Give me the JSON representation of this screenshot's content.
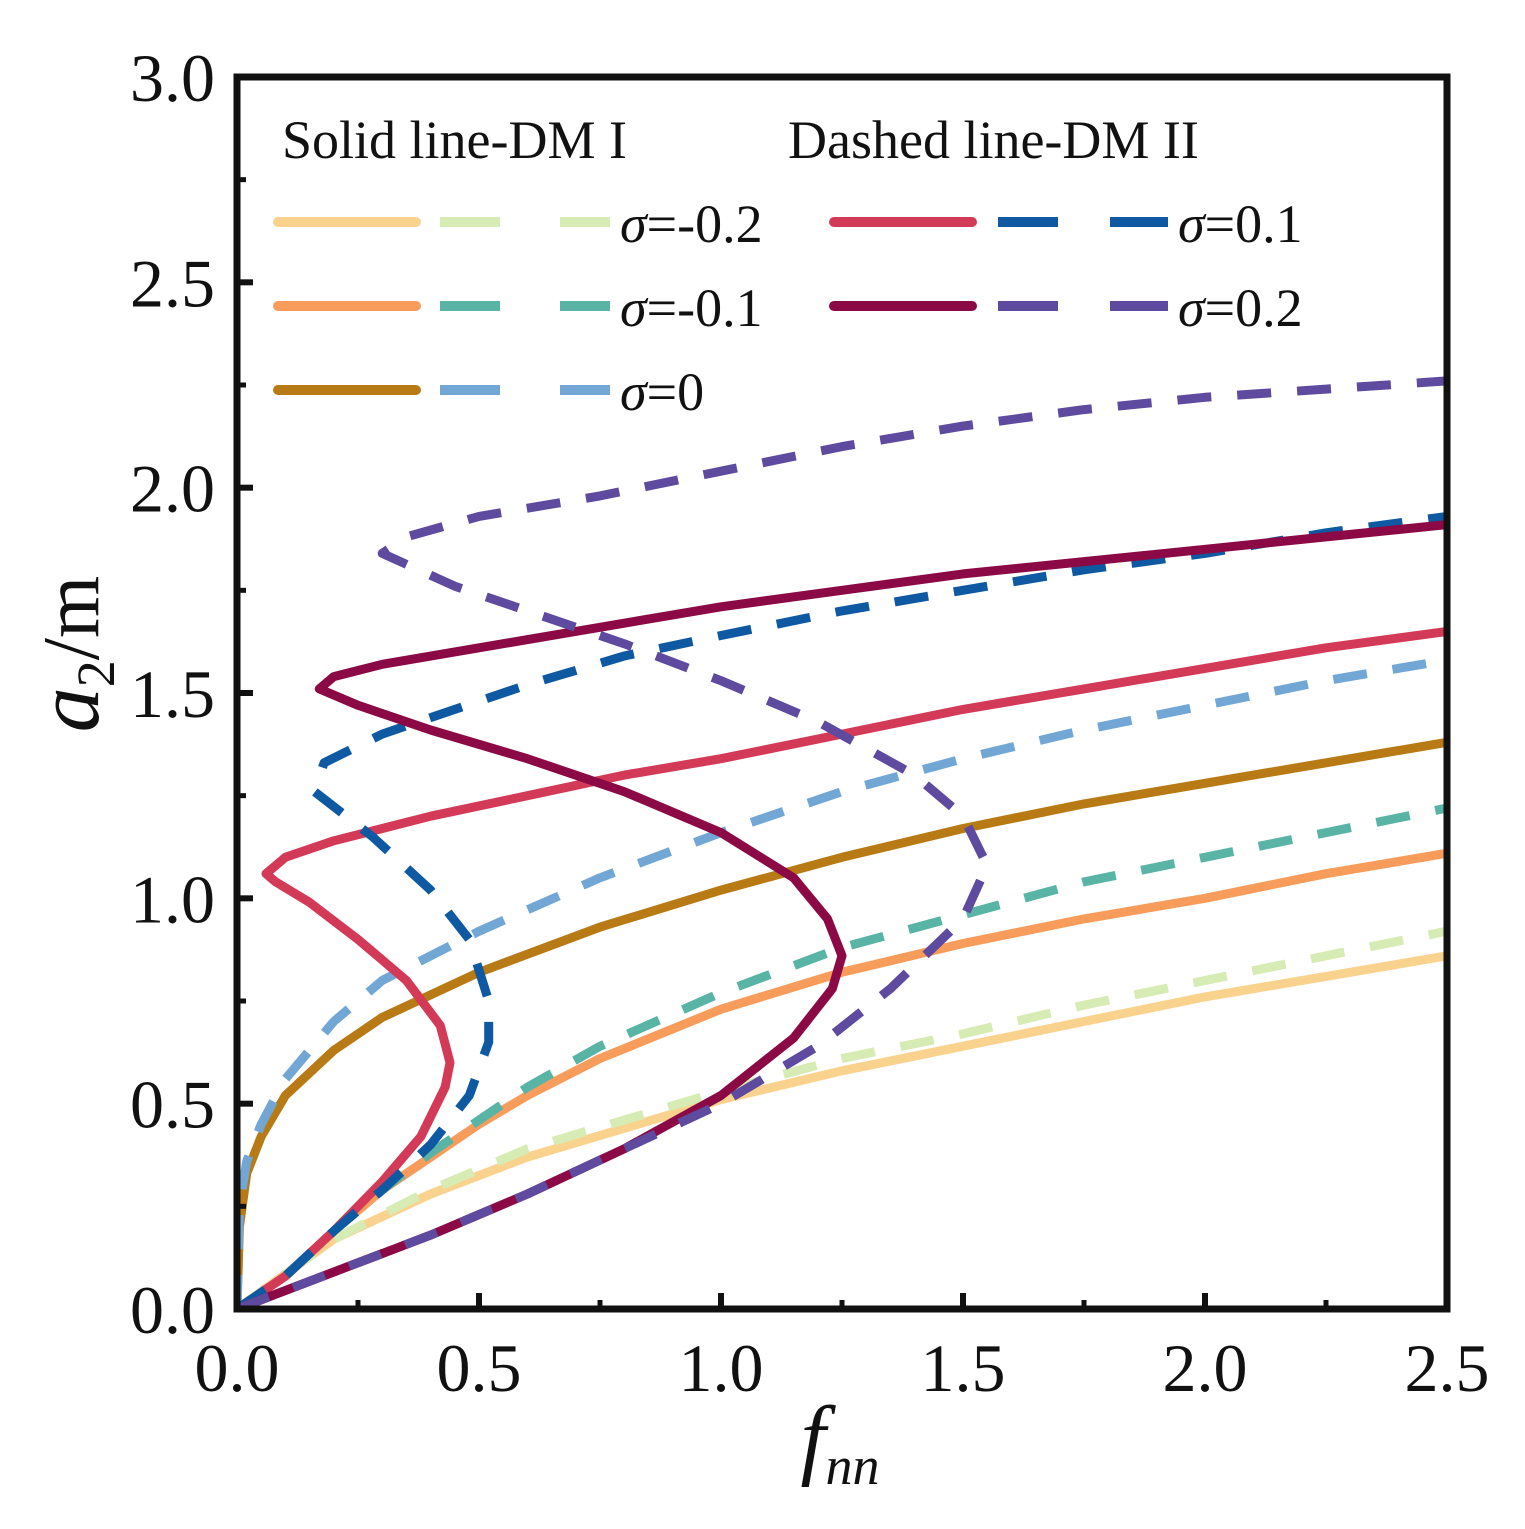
{
  "chart_data": {
    "type": "line",
    "xlabel": {
      "main": "f",
      "sub": "nn"
    },
    "ylabel": {
      "main": "a",
      "sub": "2",
      "unit": "/m"
    },
    "xlim": [
      0,
      2.5
    ],
    "ylim": [
      0,
      3.0
    ],
    "x_ticks": [
      "0.0",
      "0.5",
      "1.0",
      "1.5",
      "2.0",
      "2.5"
    ],
    "y_ticks": [
      "0.0",
      "0.5",
      "1.0",
      "1.5",
      "2.0",
      "2.5",
      "3.0"
    ],
    "grid": false,
    "legend_header": {
      "solid": "Solid line-DM I",
      "dashed": "Dashed line-DM II"
    },
    "legend_placement": "top-left",
    "series": [
      {
        "name": "σ=-0.2",
        "model": "DM I",
        "style": "solid",
        "color": "#F9D38D",
        "points": [
          [
            0,
            0
          ],
          [
            0.2,
            0.17
          ],
          [
            0.4,
            0.28
          ],
          [
            0.6,
            0.37
          ],
          [
            0.8,
            0.44
          ],
          [
            1.0,
            0.51
          ],
          [
            1.25,
            0.58
          ],
          [
            1.5,
            0.64
          ],
          [
            1.75,
            0.7
          ],
          [
            2.0,
            0.76
          ],
          [
            2.25,
            0.81
          ],
          [
            2.5,
            0.86
          ]
        ]
      },
      {
        "name": "σ=-0.2",
        "model": "DM II",
        "style": "dashed",
        "color": "#D7EBB4",
        "points": [
          [
            0,
            0
          ],
          [
            0.2,
            0.17
          ],
          [
            0.4,
            0.29
          ],
          [
            0.6,
            0.39
          ],
          [
            0.8,
            0.46
          ],
          [
            1.0,
            0.53
          ],
          [
            1.25,
            0.61
          ],
          [
            1.5,
            0.67
          ],
          [
            1.75,
            0.74
          ],
          [
            2.0,
            0.8
          ],
          [
            2.25,
            0.86
          ],
          [
            2.5,
            0.92
          ]
        ]
      },
      {
        "name": "σ=-0.1",
        "model": "DM I",
        "style": "solid",
        "color": "#F79C5B",
        "points": [
          [
            0,
            0
          ],
          [
            0.1,
            0.08
          ],
          [
            0.2,
            0.19
          ],
          [
            0.3,
            0.29
          ],
          [
            0.4,
            0.37
          ],
          [
            0.5,
            0.45
          ],
          [
            0.6,
            0.52
          ],
          [
            0.75,
            0.61
          ],
          [
            1.0,
            0.73
          ],
          [
            1.25,
            0.82
          ],
          [
            1.5,
            0.89
          ],
          [
            1.75,
            0.95
          ],
          [
            2.0,
            1.0
          ],
          [
            2.25,
            1.06
          ],
          [
            2.5,
            1.11
          ]
        ]
      },
      {
        "name": "σ=-0.1",
        "model": "DM II",
        "style": "dashed",
        "color": "#59B4A5",
        "points": [
          [
            0,
            0
          ],
          [
            0.1,
            0.08
          ],
          [
            0.2,
            0.19
          ],
          [
            0.3,
            0.29
          ],
          [
            0.4,
            0.38
          ],
          [
            0.5,
            0.46
          ],
          [
            0.6,
            0.54
          ],
          [
            0.75,
            0.64
          ],
          [
            1.0,
            0.77
          ],
          [
            1.25,
            0.88
          ],
          [
            1.5,
            0.96
          ],
          [
            1.75,
            1.04
          ],
          [
            2.0,
            1.1
          ],
          [
            2.25,
            1.16
          ],
          [
            2.5,
            1.22
          ]
        ]
      },
      {
        "name": "σ=0",
        "model": "DM I",
        "style": "solid",
        "color": "#B87A14",
        "points": [
          [
            0,
            0
          ],
          [
            0.005,
            0.2
          ],
          [
            0.02,
            0.33
          ],
          [
            0.05,
            0.42
          ],
          [
            0.1,
            0.52
          ],
          [
            0.2,
            0.63
          ],
          [
            0.3,
            0.71
          ],
          [
            0.5,
            0.82
          ],
          [
            0.75,
            0.93
          ],
          [
            1.0,
            1.02
          ],
          [
            1.25,
            1.1
          ],
          [
            1.5,
            1.17
          ],
          [
            1.75,
            1.23
          ],
          [
            2.0,
            1.28
          ],
          [
            2.25,
            1.33
          ],
          [
            2.5,
            1.38
          ]
        ]
      },
      {
        "name": "σ=0",
        "model": "DM II",
        "style": "dashed",
        "color": "#72A7D5",
        "points": [
          [
            0,
            0
          ],
          [
            0.005,
            0.25
          ],
          [
            0.02,
            0.36
          ],
          [
            0.05,
            0.45
          ],
          [
            0.1,
            0.56
          ],
          [
            0.2,
            0.7
          ],
          [
            0.3,
            0.8
          ],
          [
            0.5,
            0.92
          ],
          [
            0.75,
            1.05
          ],
          [
            1.0,
            1.16
          ],
          [
            1.25,
            1.26
          ],
          [
            1.5,
            1.34
          ],
          [
            1.75,
            1.41
          ],
          [
            2.0,
            1.47
          ],
          [
            2.25,
            1.53
          ],
          [
            2.5,
            1.58
          ]
        ]
      },
      {
        "name": "σ=0.1",
        "model": "DM I",
        "style": "solid",
        "color": "#D33A57",
        "points": [
          [
            0,
            0
          ],
          [
            0.1,
            0.08
          ],
          [
            0.2,
            0.19
          ],
          [
            0.3,
            0.31
          ],
          [
            0.38,
            0.42
          ],
          [
            0.43,
            0.54
          ],
          [
            0.44,
            0.6
          ],
          [
            0.42,
            0.69
          ],
          [
            0.35,
            0.8
          ],
          [
            0.25,
            0.9
          ],
          [
            0.15,
            0.99
          ],
          [
            0.08,
            1.04
          ],
          [
            0.06,
            1.06
          ],
          [
            0.1,
            1.1
          ],
          [
            0.2,
            1.14
          ],
          [
            0.4,
            1.2
          ],
          [
            0.6,
            1.25
          ],
          [
            0.8,
            1.3
          ],
          [
            1.0,
            1.34
          ],
          [
            1.25,
            1.4
          ],
          [
            1.5,
            1.46
          ],
          [
            1.75,
            1.51
          ],
          [
            2.0,
            1.56
          ],
          [
            2.25,
            1.61
          ],
          [
            2.5,
            1.65
          ]
        ]
      },
      {
        "name": "σ=0.1",
        "model": "DM II",
        "style": "dashed",
        "color": "#0E59A2",
        "points": [
          [
            0,
            0
          ],
          [
            0.1,
            0.08
          ],
          [
            0.2,
            0.19
          ],
          [
            0.3,
            0.29
          ],
          [
            0.4,
            0.4
          ],
          [
            0.48,
            0.52
          ],
          [
            0.52,
            0.65
          ],
          [
            0.52,
            0.75
          ],
          [
            0.48,
            0.9
          ],
          [
            0.4,
            1.02
          ],
          [
            0.28,
            1.15
          ],
          [
            0.16,
            1.26
          ],
          [
            0.18,
            1.33
          ],
          [
            0.3,
            1.4
          ],
          [
            0.4,
            1.44
          ],
          [
            0.6,
            1.52
          ],
          [
            0.8,
            1.59
          ],
          [
            1.0,
            1.64
          ],
          [
            1.25,
            1.7
          ],
          [
            1.5,
            1.75
          ],
          [
            1.75,
            1.8
          ],
          [
            2.0,
            1.84
          ],
          [
            2.25,
            1.89
          ],
          [
            2.5,
            1.93
          ]
        ]
      },
      {
        "name": "σ=0.2",
        "model": "DM I",
        "style": "solid",
        "color": "#8B0A45",
        "points": [
          [
            0,
            0
          ],
          [
            0.2,
            0.09
          ],
          [
            0.4,
            0.18
          ],
          [
            0.6,
            0.28
          ],
          [
            0.8,
            0.39
          ],
          [
            1.0,
            0.52
          ],
          [
            1.15,
            0.66
          ],
          [
            1.23,
            0.78
          ],
          [
            1.25,
            0.86
          ],
          [
            1.22,
            0.95
          ],
          [
            1.15,
            1.05
          ],
          [
            1.0,
            1.16
          ],
          [
            0.8,
            1.26
          ],
          [
            0.6,
            1.34
          ],
          [
            0.4,
            1.41
          ],
          [
            0.25,
            1.47
          ],
          [
            0.17,
            1.51
          ],
          [
            0.2,
            1.54
          ],
          [
            0.3,
            1.57
          ],
          [
            0.5,
            1.61
          ],
          [
            0.75,
            1.66
          ],
          [
            1.0,
            1.71
          ],
          [
            1.25,
            1.75
          ],
          [
            1.5,
            1.79
          ],
          [
            1.75,
            1.82
          ],
          [
            2.0,
            1.85
          ],
          [
            2.25,
            1.88
          ],
          [
            2.5,
            1.91
          ]
        ]
      },
      {
        "name": "σ=0.2",
        "model": "DM II",
        "style": "dashed",
        "color": "#5E4A9E",
        "points": [
          [
            0,
            0
          ],
          [
            0.2,
            0.09
          ],
          [
            0.4,
            0.18
          ],
          [
            0.6,
            0.28
          ],
          [
            0.8,
            0.39
          ],
          [
            1.0,
            0.5
          ],
          [
            1.2,
            0.64
          ],
          [
            1.35,
            0.78
          ],
          [
            1.5,
            0.95
          ],
          [
            1.55,
            1.08
          ],
          [
            1.5,
            1.2
          ],
          [
            1.4,
            1.3
          ],
          [
            1.2,
            1.43
          ],
          [
            1.0,
            1.53
          ],
          [
            0.8,
            1.62
          ],
          [
            0.6,
            1.7
          ],
          [
            0.45,
            1.76
          ],
          [
            0.3,
            1.84
          ],
          [
            0.35,
            1.88
          ],
          [
            0.5,
            1.93
          ],
          [
            0.75,
            1.98
          ],
          [
            1.0,
            2.04
          ],
          [
            1.25,
            2.1
          ],
          [
            1.5,
            2.15
          ],
          [
            1.75,
            2.19
          ],
          [
            2.0,
            2.22
          ],
          [
            2.25,
            2.24
          ],
          [
            2.5,
            2.26
          ]
        ]
      }
    ],
    "legend_rows": [
      {
        "label": "σ=-0.2",
        "solid": 0,
        "dashed": 1
      },
      {
        "label": "σ=-0.1",
        "solid": 2,
        "dashed": 3
      },
      {
        "label": "σ=0",
        "solid": 4,
        "dashed": 5
      },
      {
        "label": "σ=0.1",
        "solid": 6,
        "dashed": 7
      },
      {
        "label": "σ=0.2",
        "solid": 8,
        "dashed": 9
      }
    ]
  }
}
